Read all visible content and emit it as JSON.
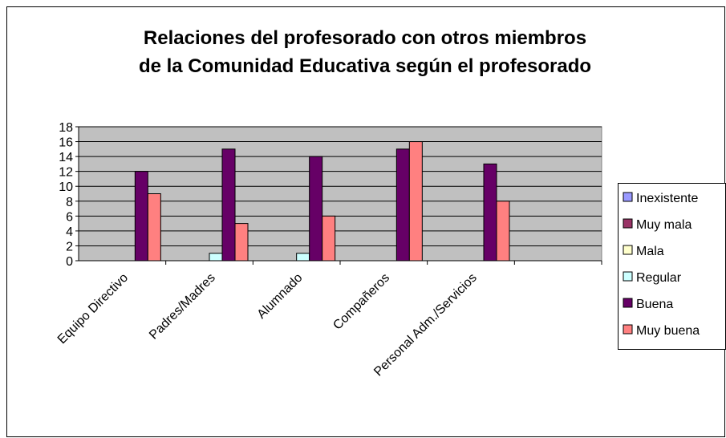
{
  "chart_data": {
    "type": "bar",
    "title": [
      "Relaciones del profesorado con otros miembros",
      "de la Comunidad Educativa según el profesorado"
    ],
    "categories": [
      "Equipo Directivo",
      "Padres/Madres",
      "Alumnado",
      "Compañeros",
      "Personal Adm./Servicios",
      null
    ],
    "series": [
      {
        "name": "Inexistente",
        "color": "#9999ff",
        "values": [
          0,
          0,
          0,
          0,
          0,
          null
        ]
      },
      {
        "name": "Muy mala",
        "color": "#993366",
        "values": [
          0,
          0,
          0,
          0,
          0,
          null
        ]
      },
      {
        "name": "Mala",
        "color": "#ffffcc",
        "values": [
          0,
          0,
          0,
          0,
          0,
          null
        ]
      },
      {
        "name": "Regular",
        "color": "#ccffff",
        "values": [
          0,
          1,
          1,
          0,
          0,
          null
        ]
      },
      {
        "name": "Buena",
        "color": "#660066",
        "values": [
          12,
          15,
          14,
          15,
          13,
          null
        ]
      },
      {
        "name": "Muy buena",
        "color": "#ff8080",
        "values": [
          9,
          5,
          6,
          16,
          8,
          null
        ]
      }
    ],
    "ylim": [
      0,
      18
    ],
    "yticks": [
      0,
      2,
      4,
      6,
      8,
      10,
      12,
      14,
      16,
      18
    ],
    "grid": true,
    "legend": "right"
  }
}
